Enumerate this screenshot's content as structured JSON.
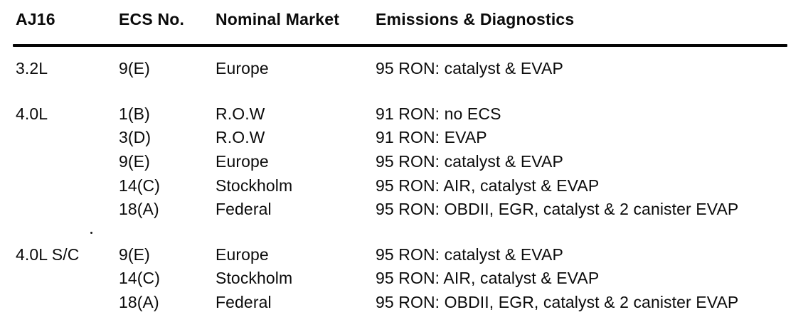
{
  "table": {
    "columns": [
      "AJ16",
      "ECS No.",
      "Nominal Market",
      "Emissions & Diagnostics"
    ],
    "groups": [
      {
        "model": "3.2L",
        "rows": [
          {
            "ecs": "9(E)",
            "market": "Europe",
            "emissions": "95 RON: catalyst & EVAP"
          }
        ]
      },
      {
        "model": "4.0L",
        "rows": [
          {
            "ecs": "1(B)",
            "market": "R.O.W",
            "emissions": "91 RON: no ECS"
          },
          {
            "ecs": "3(D)",
            "market": "R.O.W",
            "emissions": "91 RON: EVAP"
          },
          {
            "ecs": "9(E)",
            "market": "Europe",
            "emissions": "95 RON: catalyst & EVAP"
          },
          {
            "ecs": "14(C)",
            "market": "Stockholm",
            "emissions": "95 RON: AIR, catalyst & EVAP"
          },
          {
            "ecs": "18(A)",
            "market": "Federal",
            "emissions": "95 RON: OBDII, EGR, catalyst & 2 canister EVAP"
          }
        ]
      },
      {
        "model": "4.0L S/C",
        "rows": [
          {
            "ecs": "9(E)",
            "market": "Europe",
            "emissions": "95 RON: catalyst & EVAP"
          },
          {
            "ecs": "14(C)",
            "market": "Stockholm",
            "emissions": "95 RON: AIR, catalyst & EVAP"
          },
          {
            "ecs": "18(A)",
            "market": "Federal",
            "emissions": "95 RON: OBDII, EGR, catalyst & 2 canister EVAP"
          }
        ]
      }
    ]
  }
}
